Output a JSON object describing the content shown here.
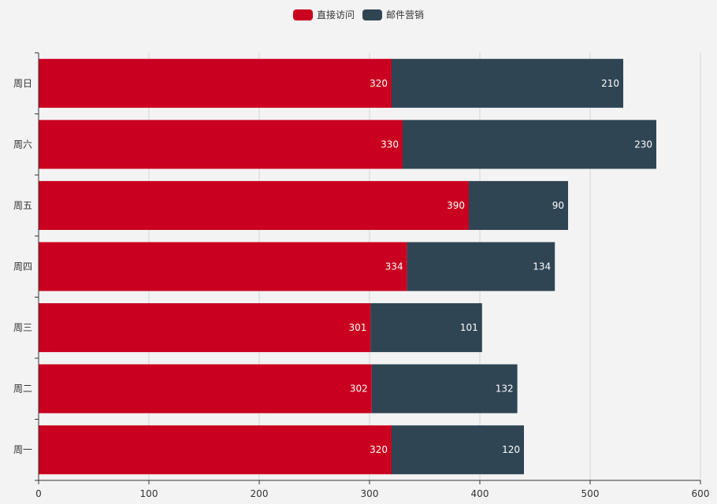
{
  "legend": [
    {
      "label": "直接访问",
      "color": "#c9001f"
    },
    {
      "label": "邮件营销",
      "color": "#2f4554"
    }
  ],
  "chart_data": {
    "type": "bar",
    "orientation": "horizontal",
    "stacked": true,
    "categories": [
      "周一",
      "周二",
      "周三",
      "周四",
      "周五",
      "周六",
      "周日"
    ],
    "series": [
      {
        "name": "直接访问",
        "color": "#c9001f",
        "values": [
          320,
          302,
          301,
          334,
          390,
          330,
          320
        ]
      },
      {
        "name": "邮件营销",
        "color": "#2f4554",
        "values": [
          120,
          132,
          101,
          134,
          90,
          230,
          210
        ]
      }
    ],
    "xlim": [
      0,
      600
    ],
    "x_ticks": [
      0,
      100,
      200,
      300,
      400,
      500,
      600
    ],
    "grid": true,
    "legend_position": "top-center",
    "data_labels": "inside-right"
  }
}
